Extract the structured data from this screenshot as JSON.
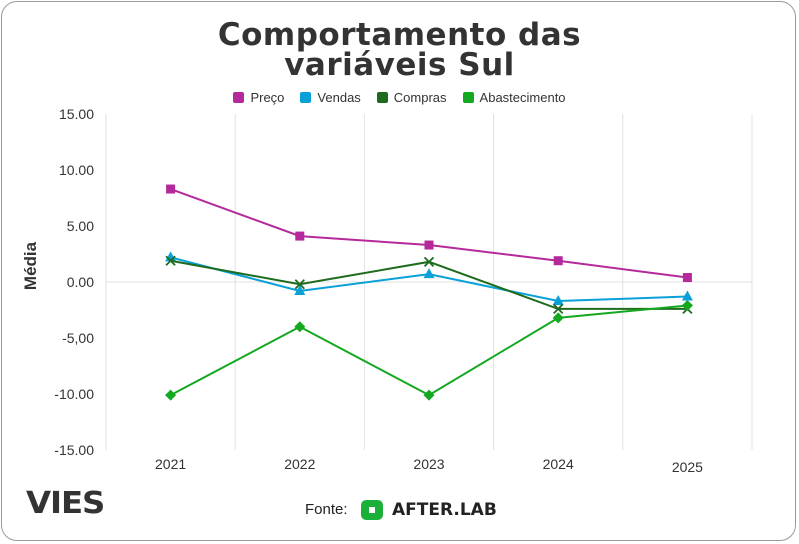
{
  "chart_data": {
    "type": "line",
    "title_line1": "Comportamento das",
    "title_line2": "variáveis Sul",
    "ylabel": "Média",
    "categories": [
      "2021",
      "2022",
      "2023",
      "2024",
      "2025"
    ],
    "ylim": [
      -15,
      15
    ],
    "yticks": [
      15,
      10,
      5,
      0,
      -5,
      -10,
      -15
    ],
    "ytick_labels": [
      "15.00",
      "10.00",
      "5.00",
      "0.00",
      "-5,00",
      "-10.00",
      "-15.00"
    ],
    "grid": "vertical",
    "legend_position": "top-center",
    "series": [
      {
        "name": "Preço",
        "color": "#b5299a",
        "marker": "square",
        "values": [
          8.3,
          4.1,
          3.3,
          1.9,
          0.4
        ]
      },
      {
        "name": "Vendas",
        "color": "#0aa0d8",
        "marker": "triangle",
        "values": [
          2.2,
          -0.8,
          0.7,
          -1.7,
          -1.3
        ]
      },
      {
        "name": "Compras",
        "color": "#1e6b1e",
        "marker": "x",
        "values": [
          1.9,
          -0.2,
          1.8,
          -2.4,
          -2.4
        ]
      },
      {
        "name": "Abastecimento",
        "color": "#14a820",
        "marker": "diamond",
        "values": [
          -10.1,
          -4.0,
          -10.1,
          -3.2,
          -2.1
        ]
      }
    ]
  },
  "footer": {
    "brand": "VIES",
    "source_label": "Fonte:",
    "source_name": "AFTER.LAB",
    "source_logo_icon": "afterlab-logo-icon",
    "logo_color": "#1bb03a"
  }
}
